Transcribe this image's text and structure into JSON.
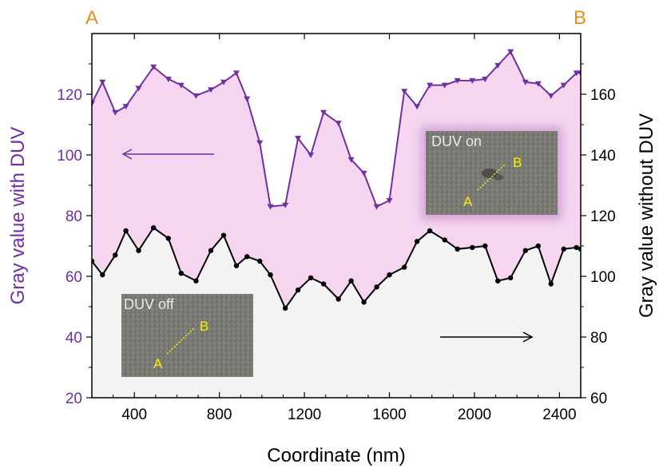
{
  "chart_data": {
    "type": "line",
    "corner_labels": {
      "left": "A",
      "right": "B"
    },
    "xlabel": "Coordinate (nm)",
    "ylabel_left": "Gray value with DUV",
    "ylabel_right": "Gray value without DUV",
    "xlim": [
      200,
      2500
    ],
    "ylim_left": [
      20,
      140
    ],
    "ylim_right": [
      60,
      180
    ],
    "x_ticks": [
      400,
      800,
      1200,
      1600,
      2000,
      2400
    ],
    "y_left_ticks": [
      20,
      40,
      60,
      80,
      100,
      120
    ],
    "y_right_ticks": [
      60,
      80,
      100,
      120,
      140,
      160
    ],
    "series": [
      {
        "name": "DUV on",
        "axis": "left",
        "color": "#7030a0",
        "fill": "#f5d5f0",
        "marker": "triangle-down",
        "x": [
          200,
          250,
          310,
          360,
          420,
          490,
          560,
          620,
          690,
          760,
          820,
          880,
          930,
          990,
          1040,
          1110,
          1170,
          1230,
          1290,
          1360,
          1420,
          1480,
          1540,
          1600,
          1670,
          1730,
          1790,
          1860,
          1920,
          1990,
          2050,
          2110,
          2170,
          2240,
          2300,
          2360,
          2420,
          2480,
          2500
        ],
        "values": [
          117,
          124,
          114,
          116,
          122,
          129,
          125,
          123,
          119.5,
          121.5,
          124,
          127,
          118.5,
          104,
          83,
          83.5,
          105.5,
          100,
          114,
          110.5,
          98.5,
          94,
          83,
          85,
          121,
          116,
          123,
          123,
          124.5,
          124.5,
          125,
          129.5,
          134,
          124,
          123.5,
          119.5,
          123,
          127,
          127
        ]
      },
      {
        "name": "DUV off",
        "axis": "right",
        "color": "#000000",
        "fill": "#f3f3f3",
        "marker": "circle",
        "x": [
          200,
          250,
          310,
          360,
          420,
          490,
          560,
          620,
          690,
          760,
          820,
          880,
          930,
          990,
          1040,
          1110,
          1170,
          1230,
          1290,
          1360,
          1420,
          1480,
          1540,
          1600,
          1670,
          1730,
          1790,
          1860,
          1920,
          1990,
          2050,
          2110,
          2170,
          2240,
          2300,
          2360,
          2420,
          2480,
          2500
        ],
        "values": [
          105,
          100.5,
          107,
          115,
          108.5,
          116,
          112.5,
          101,
          98.5,
          108.5,
          113.5,
          103.5,
          106.5,
          105,
          100.5,
          89.5,
          95.5,
          99.5,
          97.5,
          92.5,
          98.5,
          91.5,
          96.5,
          100.5,
          103,
          111.5,
          115,
          112,
          109,
          109.5,
          110,
          98.5,
          99.5,
          108.5,
          110,
          97.5,
          109,
          109.5,
          109
        ]
      }
    ]
  },
  "insets": {
    "on": {
      "title": "DUV on",
      "point_a": "A",
      "point_b": "B"
    },
    "off": {
      "title": "DUV off",
      "point_a": "A",
      "point_b": "B"
    }
  }
}
